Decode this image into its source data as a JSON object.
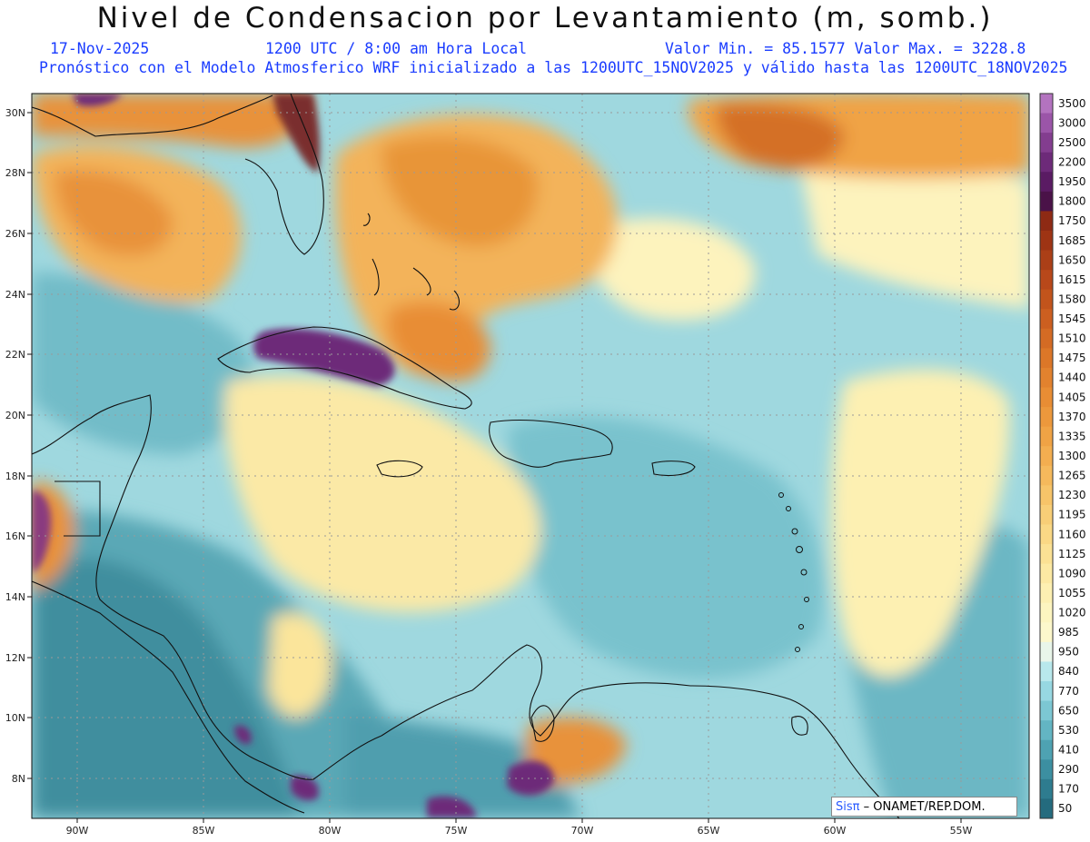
{
  "header": {
    "title": "Nivel de Condensacion por Levantamiento (m, somb.)",
    "date": "17-Nov-2025",
    "time": "1200 UTC / 8:00 am Hora Local",
    "minmax": "Valor Min. = 85.1577  Valor Max. = 3228.8",
    "model_line": "Pronóstico con el Modelo Atmosferico WRF inicializado a las 1200UTC_15NOV2025 y válido hasta las  1200UTC_18NOV2025"
  },
  "map": {
    "lat_labels": [
      "30N",
      "28N",
      "26N",
      "24N",
      "22N",
      "20N",
      "18N",
      "16N",
      "14N",
      "12N",
      "10N",
      "8N"
    ],
    "lon_labels": [
      "90W",
      "85W",
      "80W",
      "75W",
      "70W",
      "65W",
      "60W",
      "55W"
    ]
  },
  "colorbar": {
    "levels": [
      "3500",
      "3000",
      "2500",
      "2200",
      "1950",
      "1800",
      "1750",
      "1685",
      "1650",
      "1615",
      "1580",
      "1545",
      "1510",
      "1475",
      "1440",
      "1405",
      "1370",
      "1335",
      "1300",
      "1265",
      "1230",
      "1195",
      "1160",
      "1125",
      "1090",
      "1055",
      "1020",
      "985",
      "950",
      "840",
      "770",
      "650",
      "530",
      "410",
      "290",
      "170",
      "50"
    ],
    "colors": [
      "#b373bf",
      "#9b55a8",
      "#833d8f",
      "#6d2a79",
      "#5a1b63",
      "#4a1248",
      "#8e2a14",
      "#9e3414",
      "#ab3f17",
      "#b8481a",
      "#c2541c",
      "#cc5f20",
      "#d46b24",
      "#dc7728",
      "#e2822e",
      "#e88d34",
      "#ec983c",
      "#f0a345",
      "#f3ae50",
      "#f5b95c",
      "#f7c469",
      "#f8ce77",
      "#fad885",
      "#fbe194",
      "#fce9a3",
      "#fdf0b2",
      "#fdf5c0",
      "#fdf8cc",
      "#e9f6ea",
      "#b8e8ec",
      "#97d8e2",
      "#7cc7d3",
      "#63b5c3",
      "#4ea2b2",
      "#3c8fa1",
      "#2e7c8f",
      "#246b7e"
    ]
  },
  "credit": {
    "logo": "Sisπ",
    "text": " – ONAMET/REP.DOM."
  }
}
